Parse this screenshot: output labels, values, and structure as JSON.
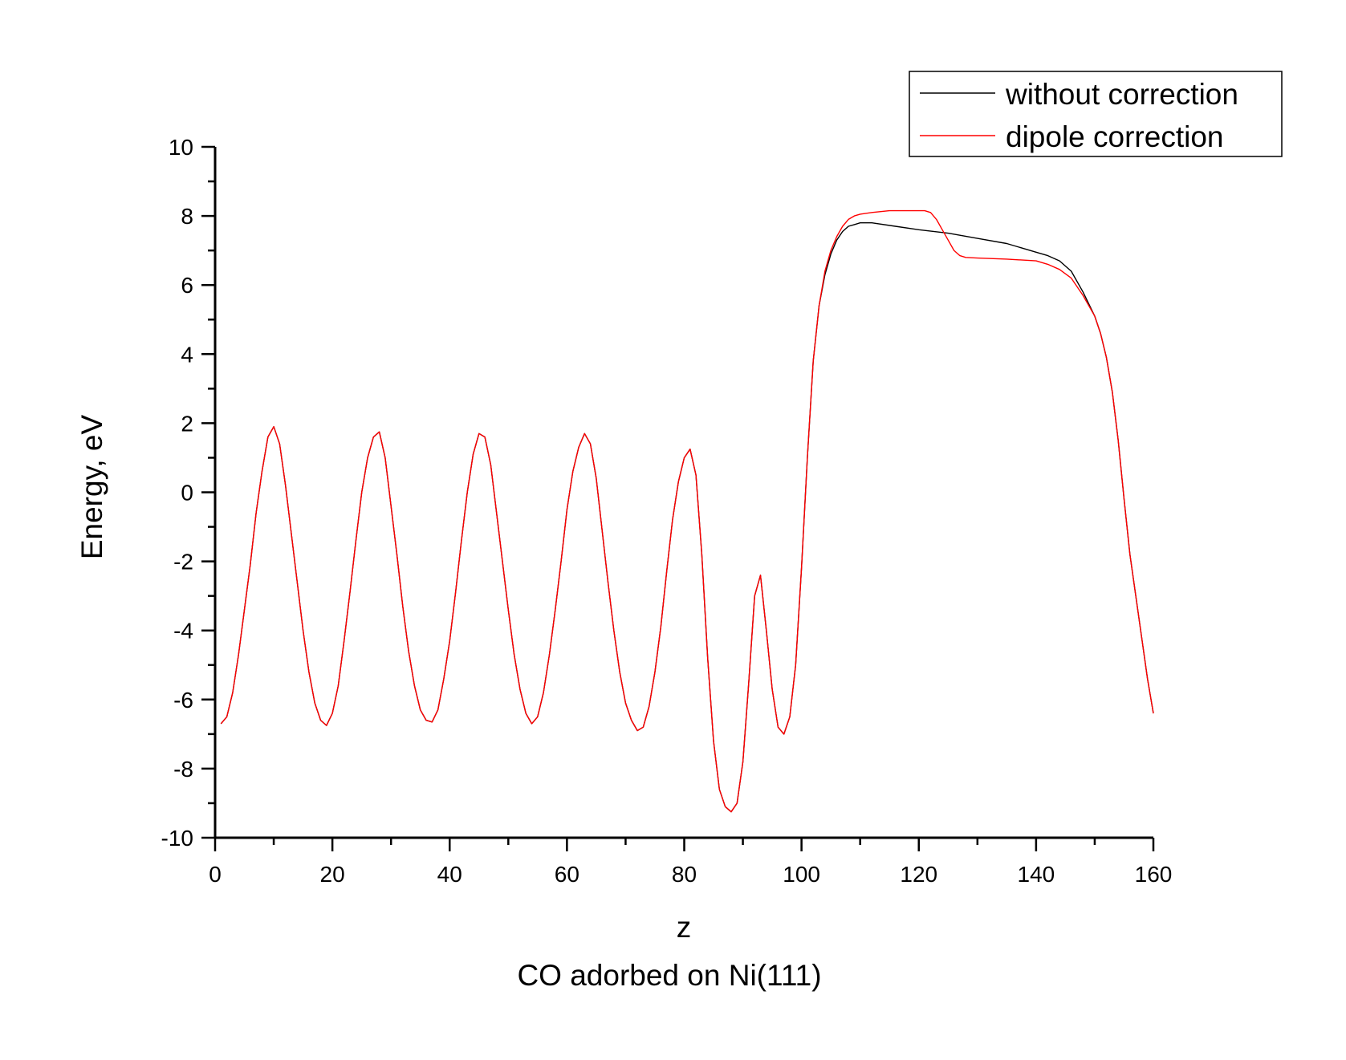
{
  "chart_data": {
    "type": "line",
    "title": "CO adorbed on Ni(111)",
    "xlabel": "z",
    "ylabel": "Energy, eV",
    "xlim": [
      0,
      160
    ],
    "ylim": [
      -10,
      10
    ],
    "xticks": [
      0,
      20,
      40,
      60,
      80,
      100,
      120,
      140,
      160
    ],
    "yticks": [
      -10,
      -8,
      -6,
      -4,
      -2,
      0,
      2,
      4,
      6,
      8,
      10
    ],
    "grid": false,
    "legend_position": "top-right",
    "series": [
      {
        "name": "without correction",
        "color": "#000000",
        "points": [
          [
            1,
            -6.7
          ],
          [
            2,
            -6.5
          ],
          [
            3,
            -5.8
          ],
          [
            4,
            -4.7
          ],
          [
            5,
            -3.4
          ],
          [
            6,
            -2.1
          ],
          [
            7,
            -0.6
          ],
          [
            8,
            0.6
          ],
          [
            9,
            1.6
          ],
          [
            10,
            1.9
          ],
          [
            11,
            1.4
          ],
          [
            12,
            0.2
          ],
          [
            13,
            -1.2
          ],
          [
            14,
            -2.6
          ],
          [
            15,
            -4.0
          ],
          [
            16,
            -5.2
          ],
          [
            17,
            -6.1
          ],
          [
            18,
            -6.6
          ],
          [
            19,
            -6.75
          ],
          [
            20,
            -6.4
          ],
          [
            21,
            -5.6
          ],
          [
            22,
            -4.3
          ],
          [
            23,
            -2.9
          ],
          [
            24,
            -1.4
          ],
          [
            25,
            0.0
          ],
          [
            26,
            1.0
          ],
          [
            27,
            1.6
          ],
          [
            28,
            1.75
          ],
          [
            29,
            1.0
          ],
          [
            30,
            -0.4
          ],
          [
            31,
            -1.8
          ],
          [
            32,
            -3.3
          ],
          [
            33,
            -4.6
          ],
          [
            34,
            -5.6
          ],
          [
            35,
            -6.3
          ],
          [
            36,
            -6.6
          ],
          [
            37,
            -6.65
          ],
          [
            38,
            -6.3
          ],
          [
            39,
            -5.4
          ],
          [
            40,
            -4.3
          ],
          [
            41,
            -2.9
          ],
          [
            42,
            -1.4
          ],
          [
            43,
            0.0
          ],
          [
            44,
            1.1
          ],
          [
            45,
            1.7
          ],
          [
            46,
            1.6
          ],
          [
            47,
            0.8
          ],
          [
            48,
            -0.6
          ],
          [
            49,
            -2.0
          ],
          [
            50,
            -3.4
          ],
          [
            51,
            -4.7
          ],
          [
            52,
            -5.7
          ],
          [
            53,
            -6.4
          ],
          [
            54,
            -6.7
          ],
          [
            55,
            -6.5
          ],
          [
            56,
            -5.8
          ],
          [
            57,
            -4.7
          ],
          [
            58,
            -3.4
          ],
          [
            59,
            -2.0
          ],
          [
            60,
            -0.5
          ],
          [
            61,
            0.6
          ],
          [
            62,
            1.3
          ],
          [
            63,
            1.7
          ],
          [
            64,
            1.4
          ],
          [
            65,
            0.4
          ],
          [
            66,
            -1.1
          ],
          [
            67,
            -2.6
          ],
          [
            68,
            -4.0
          ],
          [
            69,
            -5.2
          ],
          [
            70,
            -6.1
          ],
          [
            71,
            -6.6
          ],
          [
            72,
            -6.9
          ],
          [
            73,
            -6.8
          ],
          [
            74,
            -6.2
          ],
          [
            75,
            -5.2
          ],
          [
            76,
            -3.9
          ],
          [
            77,
            -2.3
          ],
          [
            78,
            -0.8
          ],
          [
            79,
            0.3
          ],
          [
            80,
            1.0
          ],
          [
            81,
            1.25
          ],
          [
            82,
            0.5
          ],
          [
            83,
            -1.8
          ],
          [
            84,
            -4.8
          ],
          [
            85,
            -7.2
          ],
          [
            86,
            -8.6
          ],
          [
            87,
            -9.1
          ],
          [
            88,
            -9.25
          ],
          [
            89,
            -9.0
          ],
          [
            90,
            -7.8
          ],
          [
            91,
            -5.5
          ],
          [
            92,
            -3.0
          ],
          [
            93,
            -2.4
          ],
          [
            94,
            -4.0
          ],
          [
            95,
            -5.7
          ],
          [
            96,
            -6.8
          ],
          [
            97,
            -7.0
          ],
          [
            98,
            -6.5
          ],
          [
            99,
            -5.0
          ],
          [
            100,
            -2.2
          ],
          [
            101,
            1.0
          ],
          [
            102,
            3.8
          ],
          [
            103,
            5.4
          ],
          [
            104,
            6.3
          ],
          [
            105,
            6.9
          ],
          [
            106,
            7.3
          ],
          [
            107,
            7.55
          ],
          [
            108,
            7.7
          ],
          [
            109,
            7.75
          ],
          [
            110,
            7.8
          ],
          [
            112,
            7.8
          ],
          [
            116,
            7.7
          ],
          [
            120,
            7.6
          ],
          [
            125,
            7.5
          ],
          [
            130,
            7.35
          ],
          [
            135,
            7.2
          ],
          [
            140,
            6.95
          ],
          [
            142,
            6.85
          ],
          [
            144,
            6.7
          ],
          [
            146,
            6.4
          ],
          [
            148,
            5.8
          ],
          [
            150,
            5.1
          ],
          [
            151,
            4.6
          ],
          [
            152,
            3.9
          ],
          [
            153,
            2.9
          ],
          [
            154,
            1.5
          ],
          [
            155,
            -0.2
          ],
          [
            156,
            -1.8
          ],
          [
            157,
            -3.0
          ],
          [
            158,
            -4.2
          ],
          [
            159,
            -5.4
          ],
          [
            160,
            -6.4
          ]
        ]
      },
      {
        "name": "dipole correction",
        "color": "#ff0000",
        "points": [
          [
            1,
            -6.7
          ],
          [
            2,
            -6.5
          ],
          [
            3,
            -5.8
          ],
          [
            4,
            -4.7
          ],
          [
            5,
            -3.4
          ],
          [
            6,
            -2.1
          ],
          [
            7,
            -0.6
          ],
          [
            8,
            0.6
          ],
          [
            9,
            1.6
          ],
          [
            10,
            1.9
          ],
          [
            11,
            1.4
          ],
          [
            12,
            0.2
          ],
          [
            13,
            -1.2
          ],
          [
            14,
            -2.6
          ],
          [
            15,
            -4.0
          ],
          [
            16,
            -5.2
          ],
          [
            17,
            -6.1
          ],
          [
            18,
            -6.6
          ],
          [
            19,
            -6.75
          ],
          [
            20,
            -6.4
          ],
          [
            21,
            -5.6
          ],
          [
            22,
            -4.3
          ],
          [
            23,
            -2.9
          ],
          [
            24,
            -1.4
          ],
          [
            25,
            0.0
          ],
          [
            26,
            1.0
          ],
          [
            27,
            1.6
          ],
          [
            28,
            1.75
          ],
          [
            29,
            1.0
          ],
          [
            30,
            -0.4
          ],
          [
            31,
            -1.8
          ],
          [
            32,
            -3.3
          ],
          [
            33,
            -4.6
          ],
          [
            34,
            -5.6
          ],
          [
            35,
            -6.3
          ],
          [
            36,
            -6.6
          ],
          [
            37,
            -6.65
          ],
          [
            38,
            -6.3
          ],
          [
            39,
            -5.4
          ],
          [
            40,
            -4.3
          ],
          [
            41,
            -2.9
          ],
          [
            42,
            -1.4
          ],
          [
            43,
            0.0
          ],
          [
            44,
            1.1
          ],
          [
            45,
            1.7
          ],
          [
            46,
            1.6
          ],
          [
            47,
            0.8
          ],
          [
            48,
            -0.6
          ],
          [
            49,
            -2.0
          ],
          [
            50,
            -3.4
          ],
          [
            51,
            -4.7
          ],
          [
            52,
            -5.7
          ],
          [
            53,
            -6.4
          ],
          [
            54,
            -6.7
          ],
          [
            55,
            -6.5
          ],
          [
            56,
            -5.8
          ],
          [
            57,
            -4.7
          ],
          [
            58,
            -3.4
          ],
          [
            59,
            -2.0
          ],
          [
            60,
            -0.5
          ],
          [
            61,
            0.6
          ],
          [
            62,
            1.3
          ],
          [
            63,
            1.7
          ],
          [
            64,
            1.4
          ],
          [
            65,
            0.4
          ],
          [
            66,
            -1.1
          ],
          [
            67,
            -2.6
          ],
          [
            68,
            -4.0
          ],
          [
            69,
            -5.2
          ],
          [
            70,
            -6.1
          ],
          [
            71,
            -6.6
          ],
          [
            72,
            -6.9
          ],
          [
            73,
            -6.8
          ],
          [
            74,
            -6.2
          ],
          [
            75,
            -5.2
          ],
          [
            76,
            -3.9
          ],
          [
            77,
            -2.3
          ],
          [
            78,
            -0.8
          ],
          [
            79,
            0.3
          ],
          [
            80,
            1.0
          ],
          [
            81,
            1.25
          ],
          [
            82,
            0.5
          ],
          [
            83,
            -1.8
          ],
          [
            84,
            -4.8
          ],
          [
            85,
            -7.2
          ],
          [
            86,
            -8.6
          ],
          [
            87,
            -9.1
          ],
          [
            88,
            -9.25
          ],
          [
            89,
            -9.0
          ],
          [
            90,
            -7.8
          ],
          [
            91,
            -5.5
          ],
          [
            92,
            -3.0
          ],
          [
            93,
            -2.4
          ],
          [
            94,
            -4.0
          ],
          [
            95,
            -5.7
          ],
          [
            96,
            -6.8
          ],
          [
            97,
            -7.0
          ],
          [
            98,
            -6.5
          ],
          [
            99,
            -5.0
          ],
          [
            100,
            -2.2
          ],
          [
            101,
            1.0
          ],
          [
            102,
            3.8
          ],
          [
            103,
            5.4
          ],
          [
            104,
            6.4
          ],
          [
            105,
            7.0
          ],
          [
            106,
            7.4
          ],
          [
            107,
            7.7
          ],
          [
            108,
            7.9
          ],
          [
            109,
            8.0
          ],
          [
            110,
            8.05
          ],
          [
            112,
            8.1
          ],
          [
            115,
            8.15
          ],
          [
            121,
            8.15
          ],
          [
            122,
            8.1
          ],
          [
            123,
            7.9
          ],
          [
            124,
            7.6
          ],
          [
            125,
            7.3
          ],
          [
            126,
            7.0
          ],
          [
            127,
            6.85
          ],
          [
            128,
            6.8
          ],
          [
            130,
            6.78
          ],
          [
            135,
            6.75
          ],
          [
            140,
            6.7
          ],
          [
            142,
            6.6
          ],
          [
            144,
            6.45
          ],
          [
            146,
            6.2
          ],
          [
            148,
            5.7
          ],
          [
            150,
            5.1
          ],
          [
            151,
            4.6
          ],
          [
            152,
            3.9
          ],
          [
            153,
            2.9
          ],
          [
            154,
            1.5
          ],
          [
            155,
            -0.2
          ],
          [
            156,
            -1.8
          ],
          [
            157,
            -3.0
          ],
          [
            158,
            -4.2
          ],
          [
            159,
            -5.4
          ],
          [
            160,
            -6.4
          ]
        ]
      }
    ]
  }
}
